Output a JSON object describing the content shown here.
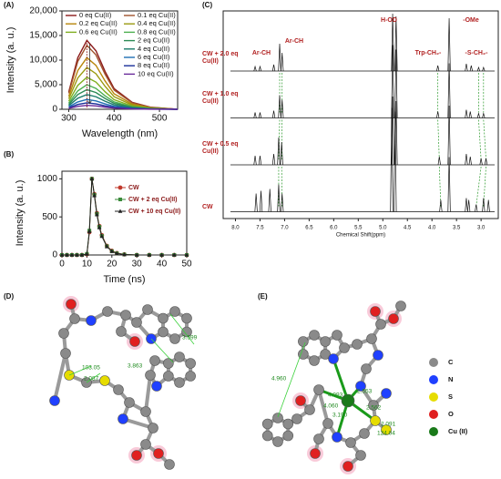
{
  "chart_data": [
    {
      "type": "line",
      "panel_label": "(A)",
      "x_label": "Wavelength (nm)",
      "y_label": "Intensity (a. u.)",
      "x": [
        300,
        320,
        340,
        360,
        380,
        400,
        440,
        480,
        520,
        540
      ],
      "series": [
        {
          "name": "0 eq Cu(II)",
          "color": "#8b1a1a",
          "values": [
            3500,
            10500,
            14000,
            11900,
            7700,
            4200,
            1400,
            420,
            140,
            0
          ]
        },
        {
          "name": "0.1 eq Cu(II)",
          "color": "#a0522d",
          "values": [
            3250,
            9750,
            13000,
            11050,
            7150,
            3900,
            1300,
            390,
            130,
            0
          ]
        },
        {
          "name": "0.2 eq Cu(II)",
          "color": "#b8860b",
          "values": [
            2625,
            7875,
            10500,
            8925,
            5775,
            3150,
            1050,
            315,
            105,
            0
          ]
        },
        {
          "name": "0.4 eq Cu(II)",
          "color": "#9a9a10",
          "values": [
            2125,
            6375,
            8500,
            7225,
            4675,
            2550,
            850,
            255,
            85,
            0
          ]
        },
        {
          "name": "0.6 eq Cu(II)",
          "color": "#7fae1f",
          "values": [
            1625,
            4875,
            6500,
            5525,
            3575,
            1950,
            650,
            195,
            65,
            0
          ]
        },
        {
          "name": "0.8 eq Cu(II)",
          "color": "#4caf50",
          "values": [
            1250,
            3750,
            5000,
            4250,
            2750,
            1500,
            500,
            150,
            50,
            0
          ]
        },
        {
          "name": "2 eq Cu(II)",
          "color": "#2e8b57",
          "values": [
            1000,
            3000,
            4000,
            3400,
            2200,
            1200,
            400,
            120,
            40,
            0
          ]
        },
        {
          "name": "4 eq Cu(II)",
          "color": "#1a7a6a",
          "values": [
            750,
            2250,
            3000,
            2550,
            1650,
            900,
            300,
            90,
            30,
            0
          ]
        },
        {
          "name": "6 eq Cu(II)",
          "color": "#1f6fb4",
          "values": [
            500,
            1500,
            2000,
            1700,
            1100,
            600,
            200,
            60,
            20,
            0
          ]
        },
        {
          "name": "8 eq Cu(II)",
          "color": "#1a2f9a",
          "values": [
            325,
            975,
            1300,
            1105,
            715,
            390,
            130,
            39,
            13,
            0
          ]
        },
        {
          "name": "10 eq Cu(II)",
          "color": "#6a2a9a",
          "values": [
            200,
            600,
            800,
            680,
            440,
            240,
            80,
            24,
            8,
            0
          ]
        }
      ],
      "xlim": [
        285,
        540
      ],
      "xticks": [
        300,
        400,
        500
      ],
      "ylim": [
        0,
        20000
      ],
      "yticks": [
        0,
        {
          "value": 5000,
          "label": "5,000"
        },
        {
          "value": 10000,
          "label": "10,000"
        },
        {
          "value": 15000,
          "label": "15,000"
        },
        {
          "value": 20000,
          "label": "20,000"
        }
      ]
    },
    {
      "type": "line",
      "panel_label": "(B)",
      "x_label": "Time (ns)",
      "y_label": "Intensity (a. u.)",
      "x": [
        0,
        2,
        4,
        6,
        8,
        10,
        11,
        12,
        13,
        14,
        15,
        16,
        18,
        20,
        22,
        25,
        30,
        35,
        40,
        45,
        50
      ],
      "series": [
        {
          "name": "CW",
          "color": "#c0392b",
          "marker": "circle",
          "values": [
            0,
            0,
            0,
            0,
            0,
            10,
            300,
            1000,
            800,
            550,
            380,
            260,
            120,
            55,
            25,
            8,
            0,
            0,
            0,
            0,
            0
          ]
        },
        {
          "name": "CW + 2 eq Cu(II)",
          "color": "#3a8a3a",
          "marker": "square",
          "values": [
            0,
            0,
            0,
            0,
            0,
            15,
            320,
            1000,
            790,
            540,
            370,
            250,
            115,
            50,
            22,
            7,
            0,
            0,
            0,
            0,
            0
          ]
        },
        {
          "name": "CW + 10 eq Cu(II)",
          "color": "#222222",
          "marker": "triangle",
          "values": [
            0,
            0,
            0,
            0,
            0,
            12,
            310,
            1000,
            780,
            530,
            360,
            245,
            110,
            48,
            20,
            6,
            0,
            0,
            0,
            0,
            0
          ]
        }
      ],
      "xlim": [
        0,
        50
      ],
      "xticks": [
        0,
        10,
        20,
        30,
        40,
        50
      ],
      "ylim": [
        0,
        1100
      ],
      "yticks": [
        0,
        500,
        1000
      ]
    },
    {
      "type": "nmr",
      "panel_label": "(C)",
      "x_label": "Chemical Shift(ppm)",
      "series": [
        {
          "name": "CW + 2.0 eq Cu(II)",
          "color": "#111111",
          "x": [
            7.6,
            7.5,
            7.22,
            7.1,
            7.05,
            4.8,
            4.73,
            3.88,
            3.65,
            3.3,
            3.2,
            3.05,
            2.95
          ],
          "values": [
            10,
            10,
            14,
            60,
            40,
            126,
            120,
            12,
            116,
            16,
            12,
            8,
            8
          ]
        },
        {
          "name": "CW + 1.0 eq Cu(II)",
          "color": "#111111",
          "x": [
            7.6,
            7.5,
            7.22,
            7.1,
            7.05,
            4.8,
            4.73,
            3.88,
            3.65,
            3.3,
            3.22,
            3.05,
            2.95
          ],
          "values": [
            12,
            12,
            16,
            50,
            40,
            160,
            150,
            14,
            120,
            18,
            14,
            10,
            10
          ]
        },
        {
          "name": "CW + 0.5 eq Cu(II)",
          "color": "#111111",
          "x": [
            7.6,
            7.5,
            7.22,
            7.12,
            7.06,
            4.8,
            4.73,
            3.85,
            3.65,
            3.3,
            3.22,
            3.0,
            2.9
          ],
          "values": [
            20,
            20,
            24,
            60,
            50,
            150,
            140,
            18,
            130,
            24,
            18,
            14,
            14
          ]
        },
        {
          "name": "CW",
          "color": "#111111",
          "x": [
            7.58,
            7.48,
            7.3,
            7.12,
            7.05,
            4.82,
            4.75,
            3.82,
            3.65,
            3.3,
            3.25,
            3.1,
            2.95,
            2.85
          ],
          "values": [
            40,
            46,
            50,
            60,
            40,
            228,
            220,
            26,
            120,
            30,
            26,
            16,
            30,
            26
          ]
        }
      ],
      "annotations": [
        "Ar-CH",
        "Ar-CH",
        "H-OD",
        "Trp-CH₂-",
        "-OMe",
        "-S-CH₂-"
      ],
      "xlim": [
        8.25,
        2.65
      ],
      "xticks": [
        {
          "value": 8,
          "label": "8.0"
        },
        7.5,
        {
          "value": 7,
          "label": "7.0"
        },
        6.5,
        {
          "value": 6,
          "label": "6.0"
        },
        5.5,
        {
          "value": 5,
          "label": "5.0"
        },
        4.5,
        {
          "value": 4,
          "label": "4.0"
        },
        3.5,
        {
          "value": 3,
          "label": "3.0"
        }
      ]
    }
  ],
  "panels": [
    {
      "label": "(D)",
      "distances": [
        "3.599",
        "3.863",
        "103.05",
        "2.087"
      ]
    },
    {
      "label": "(E)",
      "distances": [
        "4.960",
        "4.093",
        "4.060",
        "3.190",
        "2.553",
        "2.562",
        "2.091",
        "124.04"
      ],
      "legend": [
        "C",
        "N",
        "S",
        "O",
        "Cu (II)"
      ]
    }
  ]
}
